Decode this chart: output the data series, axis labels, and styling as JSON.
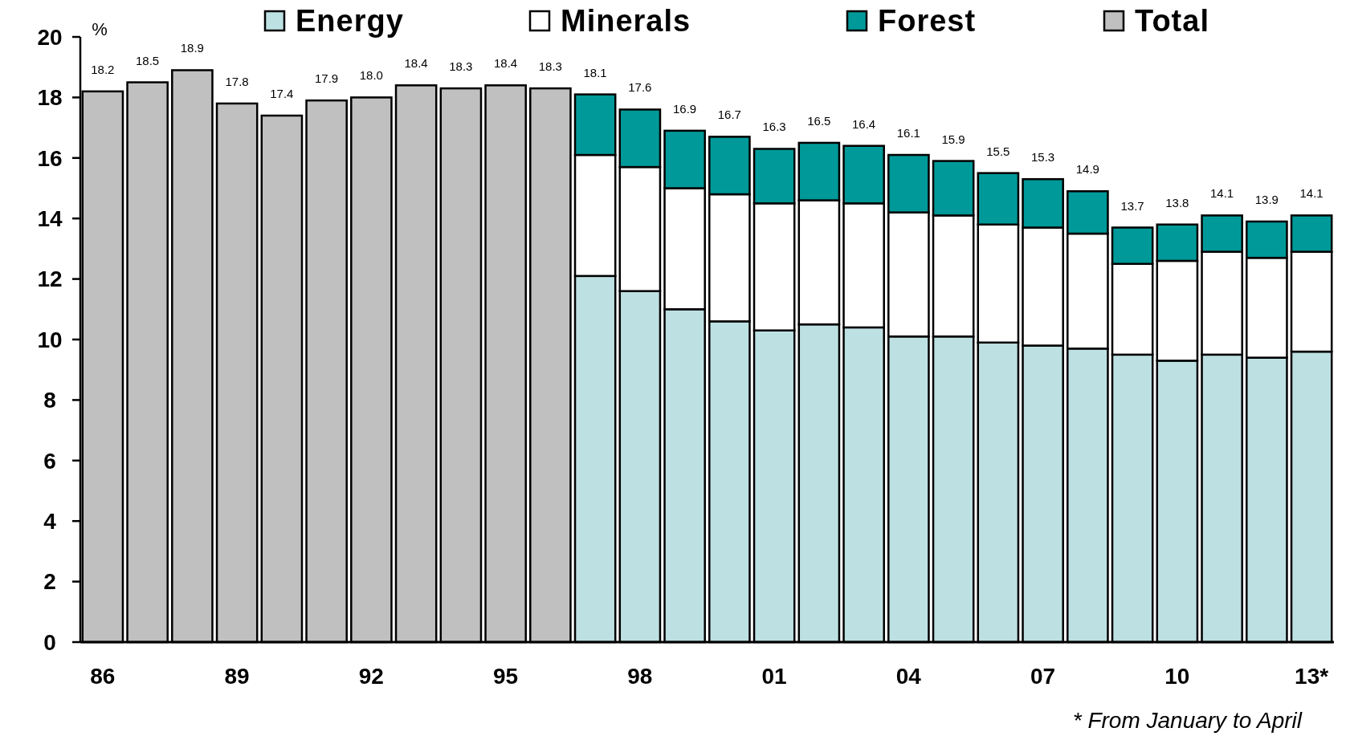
{
  "chart_data": {
    "type": "bar",
    "stacked": true,
    "ylabel": "%",
    "categories": [
      "86",
      null,
      null,
      "89",
      null,
      null,
      "92",
      null,
      null,
      "95",
      null,
      null,
      "98",
      null,
      null,
      "01",
      null,
      null,
      "04",
      null,
      null,
      "07",
      null,
      null,
      "10",
      null,
      null,
      "13*"
    ],
    "series": [
      {
        "name": "Energy",
        "color": "#bde0e3",
        "values": [
          null,
          null,
          null,
          null,
          null,
          null,
          null,
          null,
          null,
          null,
          null,
          12.1,
          11.6,
          11.0,
          10.6,
          10.3,
          10.5,
          10.4,
          10.1,
          10.1,
          9.9,
          9.8,
          9.7,
          9.5,
          9.3,
          9.5,
          9.4,
          9.6
        ]
      },
      {
        "name": "Minerals",
        "color": "#ffffff",
        "values": [
          null,
          null,
          null,
          null,
          null,
          null,
          null,
          null,
          null,
          null,
          null,
          4.0,
          4.1,
          4.0,
          4.2,
          4.2,
          4.1,
          4.1,
          4.1,
          4.0,
          3.9,
          3.9,
          3.8,
          3.0,
          3.3,
          3.4,
          3.3,
          3.3
        ]
      },
      {
        "name": "Forest",
        "color": "#009999",
        "values": [
          null,
          null,
          null,
          null,
          null,
          null,
          null,
          null,
          null,
          null,
          null,
          2.0,
          1.9,
          1.9,
          1.9,
          1.8,
          1.9,
          1.9,
          1.9,
          1.8,
          1.7,
          1.6,
          1.4,
          1.2,
          1.2,
          1.2,
          1.2,
          1.2
        ]
      },
      {
        "name": "Total",
        "color": "#c0c0c0",
        "values": [
          18.2,
          18.5,
          18.9,
          17.8,
          17.4,
          17.9,
          18.0,
          18.4,
          18.3,
          18.4,
          18.3,
          null,
          null,
          null,
          null,
          null,
          null,
          null,
          null,
          null,
          null,
          null,
          null,
          null,
          null,
          null,
          null,
          null
        ]
      }
    ],
    "totals": [
      "18.2",
      "18.5",
      "18.9",
      "17.8",
      "17.4",
      "17.9",
      "18.0",
      "18.4",
      "18.3",
      "18.4",
      "18.3",
      "18.1",
      "17.6",
      "16.9",
      "16.7",
      "16.3",
      "16.5",
      "16.4",
      "16.1",
      "15.9",
      "15.5",
      "15.3",
      "14.9",
      "13.7",
      "13.8",
      "14.1",
      "13.9",
      "14.1"
    ],
    "ylim": [
      0,
      20
    ],
    "yticks": [
      0,
      2,
      4,
      6,
      8,
      10,
      12,
      14,
      16,
      18,
      20
    ],
    "legend": "top",
    "annotations": [
      "* From January to April"
    ]
  }
}
